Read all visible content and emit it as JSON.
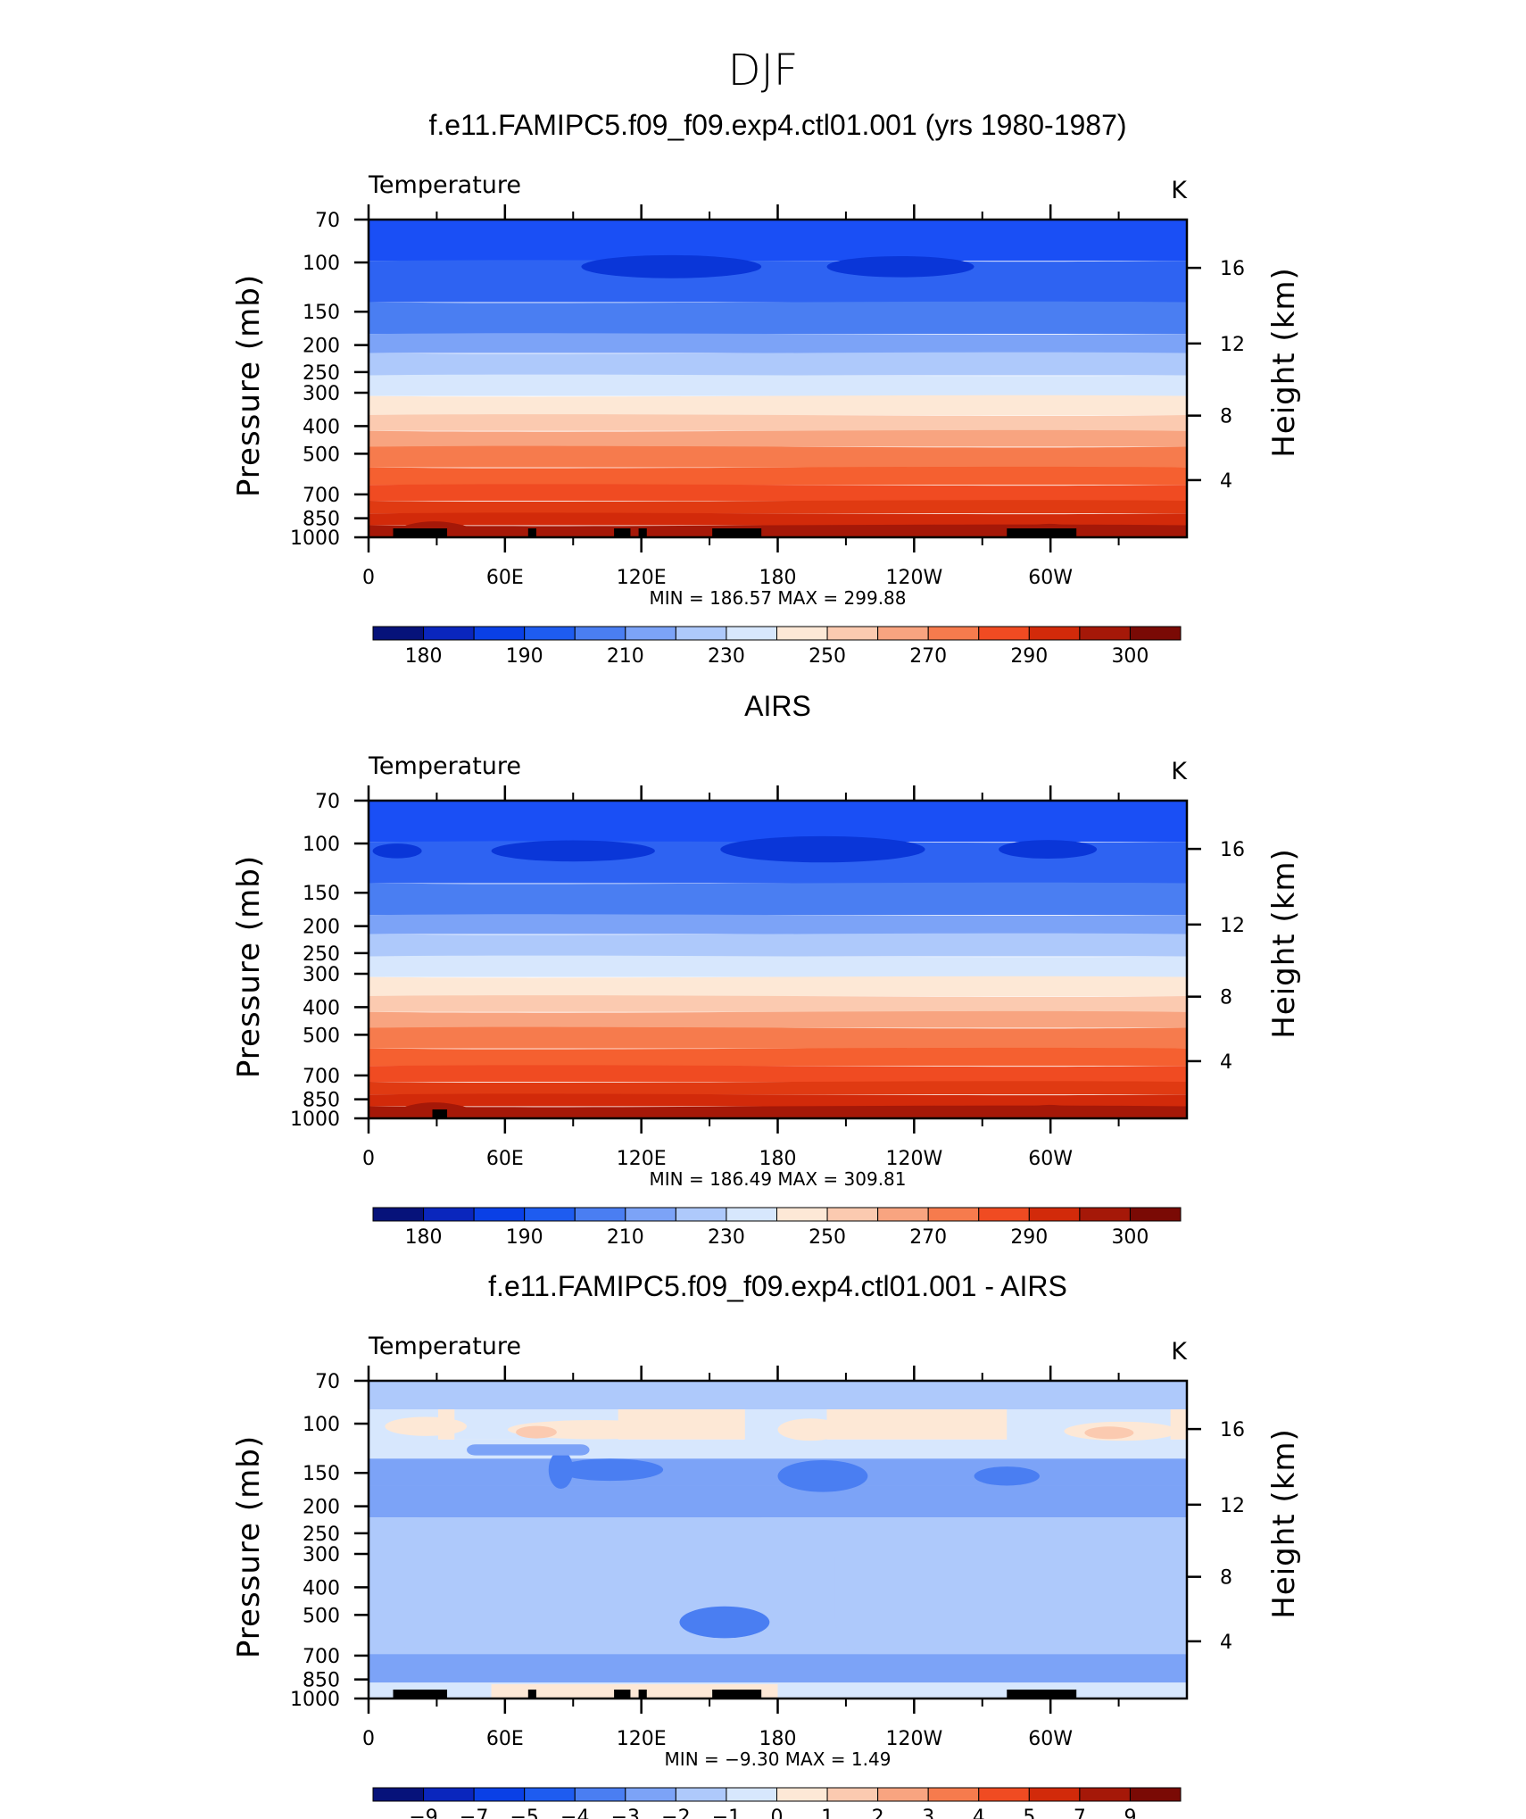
{
  "figure_title": "DJF",
  "chart_data": [
    {
      "type": "heatmap",
      "title": "f.e11.FAMIPC5.f09_f09.exp4.ctl01.001 (yrs 1980-1987)",
      "variable": "Temperature",
      "units": "K",
      "ylabel": "Pressure (mb)",
      "y2label": "Height (km)",
      "x_ticks": [
        "0",
        "60E",
        "120E",
        "180",
        "120W",
        "60W"
      ],
      "y_ticks": [
        "70",
        "100",
        "150",
        "200",
        "250",
        "300",
        "400",
        "500",
        "700",
        "850",
        "1000"
      ],
      "y2_ticks": [
        "16",
        "12",
        "8",
        "4"
      ],
      "stats": "MIN = 186.57 MAX = 299.88",
      "min": 186.57,
      "max": 299.88,
      "colorbar_labels": [
        "180",
        "190",
        "210",
        "230",
        "250",
        "270",
        "290",
        "300"
      ],
      "colorbar_colors": [
        "#06127a",
        "#0a26bd",
        "#0a40e6",
        "#1e5cf0",
        "#4a7ef2",
        "#7ca3f7",
        "#aec9fb",
        "#d7e7fd",
        "#fde8d6",
        "#fbcab0",
        "#f8a480",
        "#f67b4d",
        "#f04b22",
        "#d22a0a",
        "#a51808",
        "#7a0a05"
      ]
    },
    {
      "type": "heatmap",
      "title": "AIRS",
      "variable": "Temperature",
      "units": "K",
      "ylabel": "Pressure (mb)",
      "y2label": "Height (km)",
      "x_ticks": [
        "0",
        "60E",
        "120E",
        "180",
        "120W",
        "60W"
      ],
      "y_ticks": [
        "70",
        "100",
        "150",
        "200",
        "250",
        "300",
        "400",
        "500",
        "700",
        "850",
        "1000"
      ],
      "y2_ticks": [
        "16",
        "12",
        "8",
        "4"
      ],
      "stats": "MIN = 186.49 MAX = 309.81",
      "min": 186.49,
      "max": 309.81,
      "colorbar_labels": [
        "180",
        "190",
        "210",
        "230",
        "250",
        "270",
        "290",
        "300"
      ],
      "colorbar_colors": [
        "#06127a",
        "#0a26bd",
        "#0a40e6",
        "#1e5cf0",
        "#4a7ef2",
        "#7ca3f7",
        "#aec9fb",
        "#d7e7fd",
        "#fde8d6",
        "#fbcab0",
        "#f8a480",
        "#f67b4d",
        "#f04b22",
        "#d22a0a",
        "#a51808",
        "#7a0a05"
      ]
    },
    {
      "type": "heatmap",
      "title": "f.e11.FAMIPC5.f09_f09.exp4.ctl01.001 - AIRS",
      "variable": "Temperature",
      "units": "K",
      "ylabel": "Pressure (mb)",
      "y2label": "Height (km)",
      "x_ticks": [
        "0",
        "60E",
        "120E",
        "180",
        "120W",
        "60W"
      ],
      "y_ticks": [
        "70",
        "100",
        "150",
        "200",
        "250",
        "300",
        "400",
        "500",
        "700",
        "850",
        "1000"
      ],
      "y2_ticks": [
        "16",
        "12",
        "8",
        "4"
      ],
      "stats": "MIN = −9.30 MAX = 1.49",
      "min": -9.3,
      "max": 1.49,
      "colorbar_labels": [
        "−9",
        "−7",
        "−5",
        "−4",
        "−3",
        "−2",
        "−1",
        "0",
        "1",
        "2",
        "3",
        "4",
        "5",
        "7",
        "9"
      ],
      "colorbar_colors": [
        "#06127a",
        "#0a26bd",
        "#0a40e6",
        "#1e5cf0",
        "#4a7ef2",
        "#7ca3f7",
        "#aec9fb",
        "#d7e7fd",
        "#fde8d6",
        "#fbcab0",
        "#f8a480",
        "#f67b4d",
        "#f04b22",
        "#d22a0a",
        "#a51808",
        "#7a0a05"
      ]
    }
  ]
}
